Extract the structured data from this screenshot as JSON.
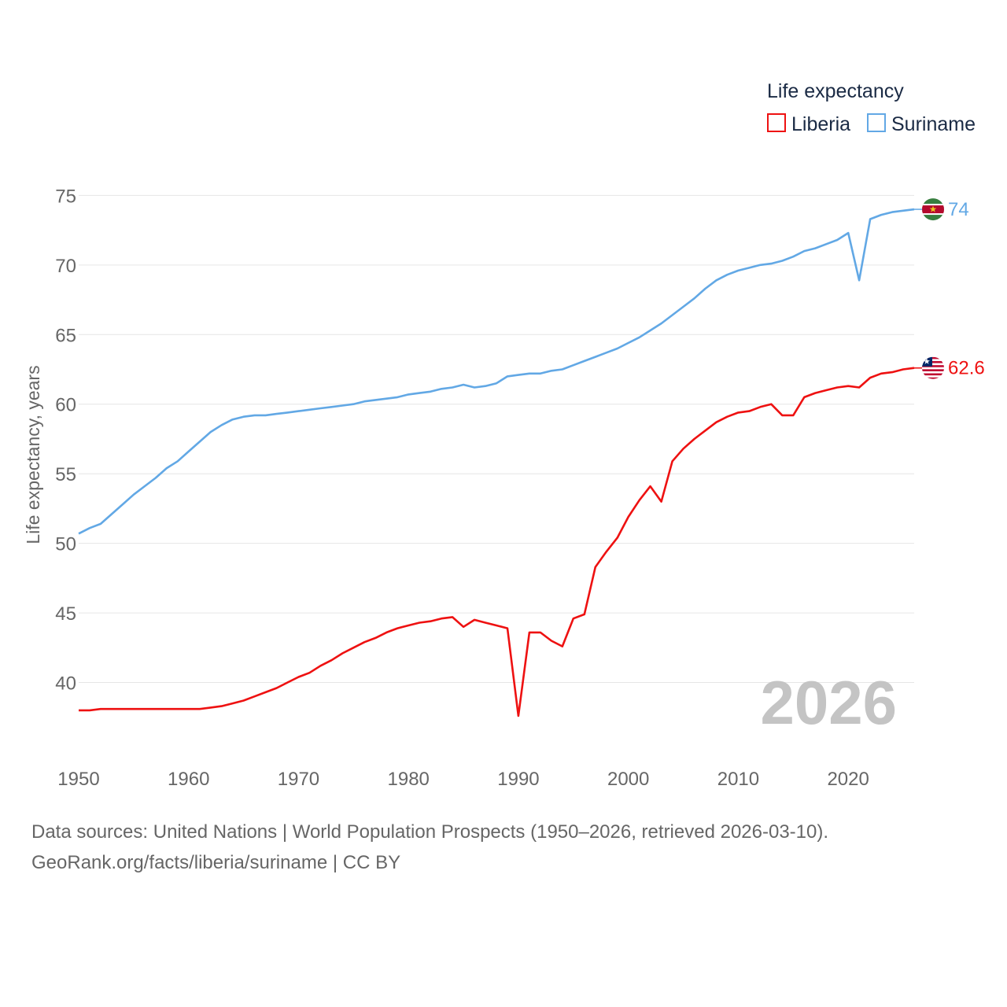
{
  "legend": {
    "title": "Life expectancy",
    "items": [
      "Liberia",
      "Suriname"
    ]
  },
  "year_marker": "2026",
  "end_labels": {
    "liberia": "62.6",
    "suriname": "74"
  },
  "footer": {
    "line1": "Data sources: United Nations | World Population Prospects (1950–2026, retrieved 2026-03-10).",
    "line2": "GeoRank.org/facts/liberia/suriname | CC BY"
  },
  "colors": {
    "liberia": "#ee1111",
    "suriname": "#62a8e5",
    "grid": "#e6e6e6"
  },
  "icons": {
    "liberia": "liberia-flag-icon",
    "suriname": "suriname-flag-icon"
  },
  "chart_data": {
    "type": "line",
    "title": "Life expectancy",
    "xlabel": "",
    "ylabel": "Life expectancy, years",
    "xlim": [
      1950,
      2026
    ],
    "ylim": [
      35,
      77
    ],
    "xticks": [
      1950,
      1960,
      1970,
      1980,
      1990,
      2000,
      2010,
      2020
    ],
    "yticks": [
      40,
      45,
      50,
      55,
      60,
      65,
      70,
      75
    ],
    "grid": true,
    "legend_position": "top-right",
    "x": [
      1950,
      1951,
      1952,
      1953,
      1954,
      1955,
      1956,
      1957,
      1958,
      1959,
      1960,
      1961,
      1962,
      1963,
      1964,
      1965,
      1966,
      1967,
      1968,
      1969,
      1970,
      1971,
      1972,
      1973,
      1974,
      1975,
      1976,
      1977,
      1978,
      1979,
      1980,
      1981,
      1982,
      1983,
      1984,
      1985,
      1986,
      1987,
      1988,
      1989,
      1990,
      1991,
      1992,
      1993,
      1994,
      1995,
      1996,
      1997,
      1998,
      1999,
      2000,
      2001,
      2002,
      2003,
      2004,
      2005,
      2006,
      2007,
      2008,
      2009,
      2010,
      2011,
      2012,
      2013,
      2014,
      2015,
      2016,
      2017,
      2018,
      2019,
      2020,
      2021,
      2022,
      2023,
      2024,
      2025,
      2026
    ],
    "series": [
      {
        "name": "Liberia",
        "color": "#ee1111",
        "values": [
          38.0,
          38.0,
          38.1,
          38.1,
          38.1,
          38.1,
          38.1,
          38.1,
          38.1,
          38.1,
          38.1,
          38.1,
          38.2,
          38.3,
          38.5,
          38.7,
          39.0,
          39.3,
          39.6,
          40.0,
          40.4,
          40.7,
          41.2,
          41.6,
          42.1,
          42.5,
          42.9,
          43.2,
          43.6,
          43.9,
          44.1,
          44.3,
          44.4,
          44.6,
          44.7,
          44.0,
          44.5,
          44.3,
          44.1,
          43.9,
          37.6,
          43.6,
          43.6,
          43.0,
          42.6,
          44.6,
          44.9,
          48.3,
          49.4,
          50.4,
          51.9,
          53.1,
          54.1,
          53.0,
          55.9,
          56.8,
          57.5,
          58.1,
          58.7,
          59.1,
          59.4,
          59.5,
          59.8,
          60.0,
          59.2,
          59.2,
          60.5,
          60.8,
          61.0,
          61.2,
          61.3,
          61.2,
          61.9,
          62.2,
          62.3,
          62.5,
          62.6
        ]
      },
      {
        "name": "Suriname",
        "color": "#62a8e5",
        "values": [
          50.7,
          51.1,
          51.4,
          52.1,
          52.8,
          53.5,
          54.1,
          54.7,
          55.4,
          55.9,
          56.6,
          57.3,
          58.0,
          58.5,
          58.9,
          59.1,
          59.2,
          59.2,
          59.3,
          59.4,
          59.5,
          59.6,
          59.7,
          59.8,
          59.9,
          60.0,
          60.2,
          60.3,
          60.4,
          60.5,
          60.7,
          60.8,
          60.9,
          61.1,
          61.2,
          61.4,
          61.2,
          61.3,
          61.5,
          62.0,
          62.1,
          62.2,
          62.2,
          62.4,
          62.5,
          62.8,
          63.1,
          63.4,
          63.7,
          64.0,
          64.4,
          64.8,
          65.3,
          65.8,
          66.4,
          67.0,
          67.6,
          68.3,
          68.9,
          69.3,
          69.6,
          69.8,
          70.0,
          70.1,
          70.3,
          70.6,
          71.0,
          71.2,
          71.5,
          71.8,
          72.3,
          68.9,
          73.3,
          73.6,
          73.8,
          73.9,
          74.0
        ]
      }
    ]
  }
}
